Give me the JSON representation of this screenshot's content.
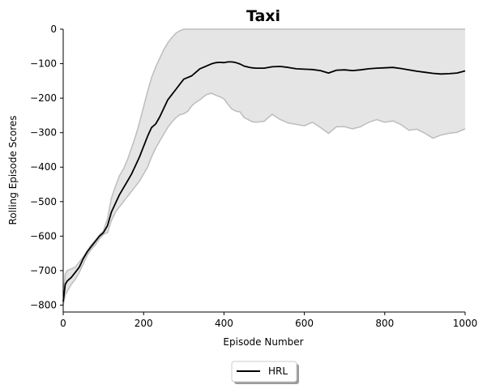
{
  "chart_data": {
    "type": "line",
    "title": "Taxi",
    "xlabel": "Episode Number",
    "ylabel": "Rolling Episode Scores",
    "xlim": [
      0,
      1000
    ],
    "ylim": [
      -820,
      0
    ],
    "xticks": [
      0,
      200,
      400,
      600,
      800,
      1000
    ],
    "yticks": [
      0,
      -100,
      -200,
      -300,
      -400,
      -500,
      -600,
      -700,
      -800
    ],
    "grid": false,
    "legend_position": "bottom-center, below axes",
    "series": [
      {
        "name": "HRL",
        "color": "#000000",
        "x": [
          0,
          5,
          10,
          20,
          30,
          40,
          50,
          60,
          70,
          80,
          90,
          100,
          110,
          120,
          130,
          140,
          150,
          160,
          170,
          180,
          190,
          200,
          210,
          220,
          230,
          240,
          250,
          260,
          270,
          280,
          290,
          300,
          310,
          320,
          330,
          340,
          350,
          360,
          370,
          380,
          390,
          400,
          410,
          420,
          430,
          440,
          450,
          460,
          470,
          480,
          500,
          520,
          540,
          560,
          580,
          600,
          620,
          640,
          660,
          680,
          700,
          720,
          740,
          760,
          780,
          800,
          820,
          840,
          860,
          880,
          900,
          920,
          940,
          960,
          980,
          1000
        ],
        "y": [
          -790,
          -740,
          -730,
          -720,
          -705,
          -690,
          -665,
          -645,
          -630,
          -615,
          -600,
          -590,
          -570,
          -530,
          -505,
          -480,
          -460,
          -440,
          -420,
          -395,
          -370,
          -340,
          -310,
          -285,
          -275,
          -255,
          -230,
          -205,
          -190,
          -175,
          -160,
          -145,
          -140,
          -135,
          -125,
          -115,
          -110,
          -105,
          -100,
          -97,
          -96,
          -97,
          -95,
          -95,
          -97,
          -101,
          -107,
          -110,
          -112,
          -113,
          -113,
          -109,
          -108,
          -111,
          -115,
          -116,
          -117,
          -120,
          -127,
          -119,
          -118,
          -120,
          -118,
          -115,
          -113,
          -112,
          -111,
          -114,
          -118,
          -122,
          -125,
          -128,
          -130,
          -129,
          -127,
          -121
        ]
      }
    ],
    "band": {
      "name": "spread",
      "color": "#e5e5e5",
      "edge_color": "#bdbdbd",
      "x": [
        0,
        5,
        10,
        20,
        30,
        40,
        50,
        60,
        70,
        80,
        90,
        100,
        110,
        120,
        130,
        140,
        150,
        160,
        170,
        180,
        190,
        200,
        210,
        220,
        230,
        240,
        250,
        260,
        270,
        280,
        290,
        300,
        310,
        320,
        330,
        340,
        350,
        360,
        370,
        380,
        390,
        400,
        410,
        420,
        430,
        440,
        450,
        460,
        470,
        480,
        500,
        520,
        540,
        560,
        580,
        600,
        620,
        640,
        660,
        680,
        700,
        720,
        740,
        760,
        780,
        800,
        820,
        840,
        860,
        880,
        900,
        920,
        940,
        960,
        980,
        1000
      ],
      "upper": [
        -775,
        -710,
        -700,
        -695,
        -690,
        -675,
        -660,
        -642,
        -625,
        -612,
        -598,
        -585,
        -550,
        -490,
        -455,
        -425,
        -405,
        -378,
        -345,
        -310,
        -270,
        -225,
        -180,
        -140,
        -110,
        -85,
        -60,
        -40,
        -25,
        -12,
        -5,
        0,
        0,
        0,
        0,
        0,
        0,
        0,
        0,
        0,
        0,
        0,
        0,
        0,
        0,
        0,
        0,
        0,
        0,
        0,
        0,
        0,
        0,
        0,
        0,
        0,
        0,
        0,
        0,
        0,
        0,
        0,
        0,
        0,
        0,
        0,
        0,
        0,
        0,
        0,
        0,
        0,
        0,
        0,
        0,
        0
      ],
      "lower": [
        -800,
        -770,
        -760,
        -740,
        -725,
        -705,
        -680,
        -655,
        -638,
        -625,
        -608,
        -595,
        -590,
        -555,
        -530,
        -515,
        -500,
        -485,
        -470,
        -455,
        -440,
        -420,
        -400,
        -370,
        -345,
        -325,
        -305,
        -285,
        -270,
        -257,
        -248,
        -245,
        -238,
        -222,
        -212,
        -205,
        -195,
        -188,
        -186,
        -192,
        -196,
        -202,
        -218,
        -232,
        -238,
        -240,
        -256,
        -262,
        -268,
        -270,
        -267,
        -247,
        -262,
        -272,
        -276,
        -280,
        -270,
        -285,
        -302,
        -283,
        -283,
        -289,
        -283,
        -270,
        -262,
        -270,
        -266,
        -276,
        -293,
        -290,
        -302,
        -316,
        -307,
        -302,
        -299,
        -289
      ]
    }
  },
  "legend": {
    "entries": [
      {
        "label": "HRL",
        "color": "#000000"
      }
    ]
  }
}
